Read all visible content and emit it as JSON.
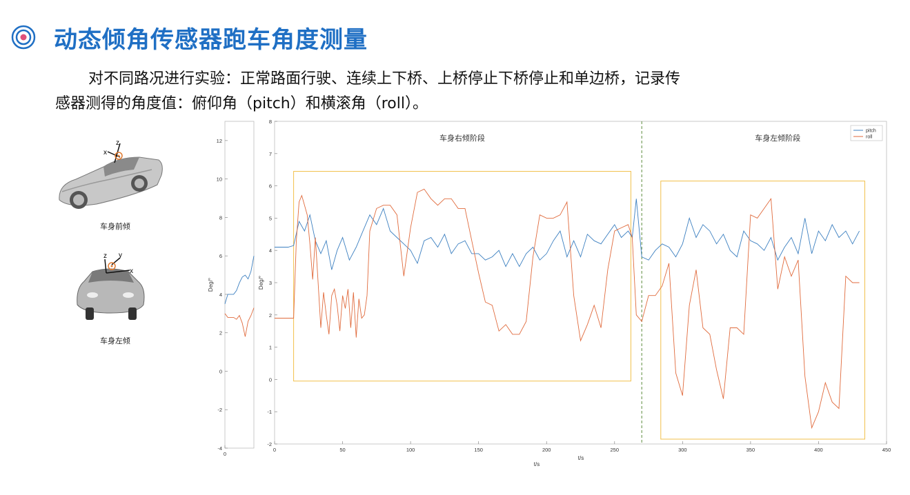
{
  "title": "动态倾角传感器跑车角度测量",
  "paragraph_line1": "对不同路况进行实验：正常路面行驶、连续上下桥、上桥停止下桥停止和单边桥，记录传",
  "paragraph_line2": "感器测得的角度值：俯仰角（pitch）和横滚角（roll）。",
  "car_front": {
    "label": "车身前倾",
    "axis_labels": [
      "z",
      "x"
    ]
  },
  "car_left": {
    "label": "车身左倾",
    "axis_labels": [
      "z",
      "y",
      "x"
    ]
  },
  "colors": {
    "title": "#1f6fc4",
    "pitch": "#3b7fc0",
    "roll": "#e06a3c",
    "box": "#f2c04a",
    "divider": "#5a8a3a"
  },
  "chart_data": [
    {
      "type": "line",
      "ylabel": "Deg/°",
      "xlabel": "t/s",
      "xlim": [
        0,
        20
      ],
      "ylim": [
        -4,
        13
      ],
      "xticks": [
        "0"
      ],
      "yticks": [
        "-4",
        "-2",
        "0",
        "2",
        "4",
        "6",
        "8",
        "10",
        "12"
      ],
      "series": [
        {
          "color": "pitch",
          "x": [
            0,
            2,
            4,
            6,
            8,
            10,
            12,
            14,
            16,
            18,
            20
          ],
          "y": [
            3.5,
            4.0,
            4.0,
            4.0,
            4.2,
            4.6,
            4.9,
            5.0,
            4.8,
            5.2,
            6.0
          ]
        },
        {
          "color": "roll",
          "x": [
            0,
            2,
            4,
            6,
            8,
            10,
            12,
            14,
            16,
            18,
            20
          ],
          "y": [
            3.0,
            2.8,
            2.8,
            2.8,
            2.7,
            2.9,
            2.5,
            1.8,
            2.6,
            2.9,
            3.3
          ]
        }
      ]
    },
    {
      "type": "line",
      "ylabel": "Deg/°",
      "xlabel": "t/s",
      "xlim": [
        0,
        450
      ],
      "ylim": [
        -2,
        8
      ],
      "xticks": [
        "0",
        "50",
        "100",
        "150",
        "200",
        "250",
        "300",
        "350",
        "400",
        "450"
      ],
      "yticks": [
        "-2",
        "-1",
        "0",
        "1",
        "2",
        "3",
        "4",
        "5",
        "6",
        "7",
        "8"
      ],
      "legend": [
        "pitch",
        "roll"
      ],
      "legend_position": "top-right",
      "annotations": [
        "车身右倾阶段",
        "车身左倾阶段"
      ],
      "divider_x": 270,
      "regions": [
        {
          "x0": 14,
          "x1": 262,
          "y0": -0.05,
          "y1": 6.45
        },
        {
          "x0": 284,
          "x1": 434,
          "y0": -1.85,
          "y1": 6.15
        }
      ],
      "series": [
        {
          "name": "pitch",
          "x": [
            0,
            10,
            14,
            18,
            22,
            26,
            30,
            34,
            38,
            42,
            46,
            50,
            55,
            60,
            65,
            70,
            75,
            80,
            85,
            90,
            95,
            100,
            105,
            110,
            115,
            120,
            125,
            130,
            135,
            140,
            145,
            150,
            155,
            160,
            165,
            170,
            175,
            180,
            185,
            190,
            195,
            200,
            205,
            210,
            215,
            220,
            225,
            230,
            235,
            240,
            245,
            250,
            255,
            260,
            263,
            266,
            270,
            275,
            280,
            285,
            290,
            295,
            300,
            305,
            310,
            315,
            320,
            325,
            330,
            335,
            340,
            345,
            350,
            355,
            360,
            365,
            370,
            375,
            380,
            385,
            390,
            395,
            400,
            405,
            410,
            415,
            420,
            425,
            430
          ],
          "y": [
            4.1,
            4.1,
            4.15,
            4.9,
            4.6,
            5.1,
            4.3,
            3.9,
            4.3,
            3.4,
            4.0,
            4.4,
            3.7,
            4.1,
            4.6,
            5.1,
            4.8,
            5.3,
            4.6,
            4.4,
            4.2,
            4.0,
            3.6,
            4.3,
            4.4,
            4.1,
            4.5,
            3.9,
            4.2,
            4.3,
            3.9,
            3.9,
            3.7,
            3.8,
            4.0,
            3.5,
            3.9,
            3.5,
            3.9,
            4.1,
            3.7,
            3.9,
            4.3,
            4.6,
            3.8,
            4.3,
            3.8,
            4.5,
            4.3,
            4.2,
            4.5,
            4.8,
            4.4,
            4.6,
            4.4,
            5.6,
            3.8,
            3.7,
            4.0,
            4.2,
            4.1,
            3.8,
            4.2,
            5.0,
            4.4,
            4.8,
            4.6,
            4.2,
            4.5,
            4.0,
            3.8,
            4.6,
            4.3,
            4.2,
            4.0,
            4.4,
            3.7,
            4.1,
            4.4,
            3.9,
            5.0,
            3.9,
            4.6,
            4.3,
            4.8,
            4.4,
            4.6,
            4.2,
            4.6
          ]
        },
        {
          "name": "roll",
          "x": [
            0,
            10,
            14,
            16,
            18,
            20,
            22,
            24,
            26,
            28,
            30,
            32,
            34,
            36,
            38,
            40,
            42,
            44,
            46,
            48,
            50,
            52,
            54,
            56,
            58,
            60,
            62,
            64,
            66,
            68,
            70,
            75,
            80,
            85,
            90,
            95,
            100,
            105,
            110,
            115,
            120,
            125,
            130,
            135,
            140,
            145,
            150,
            155,
            160,
            165,
            170,
            175,
            180,
            185,
            190,
            195,
            200,
            205,
            210,
            215,
            220,
            225,
            230,
            235,
            240,
            245,
            250,
            255,
            260,
            263,
            266,
            270,
            275,
            280,
            285,
            290,
            295,
            300,
            305,
            310,
            315,
            320,
            325,
            330,
            335,
            340,
            345,
            350,
            355,
            360,
            365,
            370,
            375,
            380,
            385,
            390,
            395,
            400,
            405,
            410,
            415,
            420,
            425,
            430
          ],
          "y": [
            1.9,
            1.9,
            1.9,
            4.3,
            5.5,
            5.7,
            5.4,
            5.1,
            4.2,
            3.1,
            4.4,
            3.0,
            1.6,
            2.7,
            2.0,
            1.4,
            2.6,
            2.8,
            2.3,
            1.5,
            2.6,
            2.2,
            2.8,
            1.6,
            2.7,
            1.3,
            2.5,
            1.9,
            2.0,
            2.6,
            4.6,
            5.3,
            5.4,
            5.4,
            5.1,
            3.2,
            4.7,
            5.8,
            5.9,
            5.6,
            5.4,
            5.6,
            5.6,
            5.3,
            5.3,
            4.3,
            3.3,
            2.4,
            2.3,
            1.5,
            1.7,
            1.4,
            1.4,
            1.8,
            3.8,
            5.1,
            5.0,
            5.0,
            5.1,
            5.5,
            2.6,
            1.2,
            1.7,
            2.3,
            1.6,
            3.4,
            4.6,
            4.7,
            4.8,
            4.4,
            2.0,
            1.8,
            2.6,
            2.6,
            2.9,
            3.6,
            0.2,
            -0.5,
            2.3,
            3.4,
            1.6,
            1.4,
            0.3,
            -0.6,
            1.6,
            1.6,
            1.4,
            5.1,
            5.0,
            5.3,
            5.6,
            2.8,
            3.8,
            3.2,
            3.7,
            0.1,
            -1.5,
            -1.0,
            -0.1,
            -0.7,
            -0.9,
            3.2,
            3.0,
            3.0
          ]
        }
      ]
    }
  ]
}
